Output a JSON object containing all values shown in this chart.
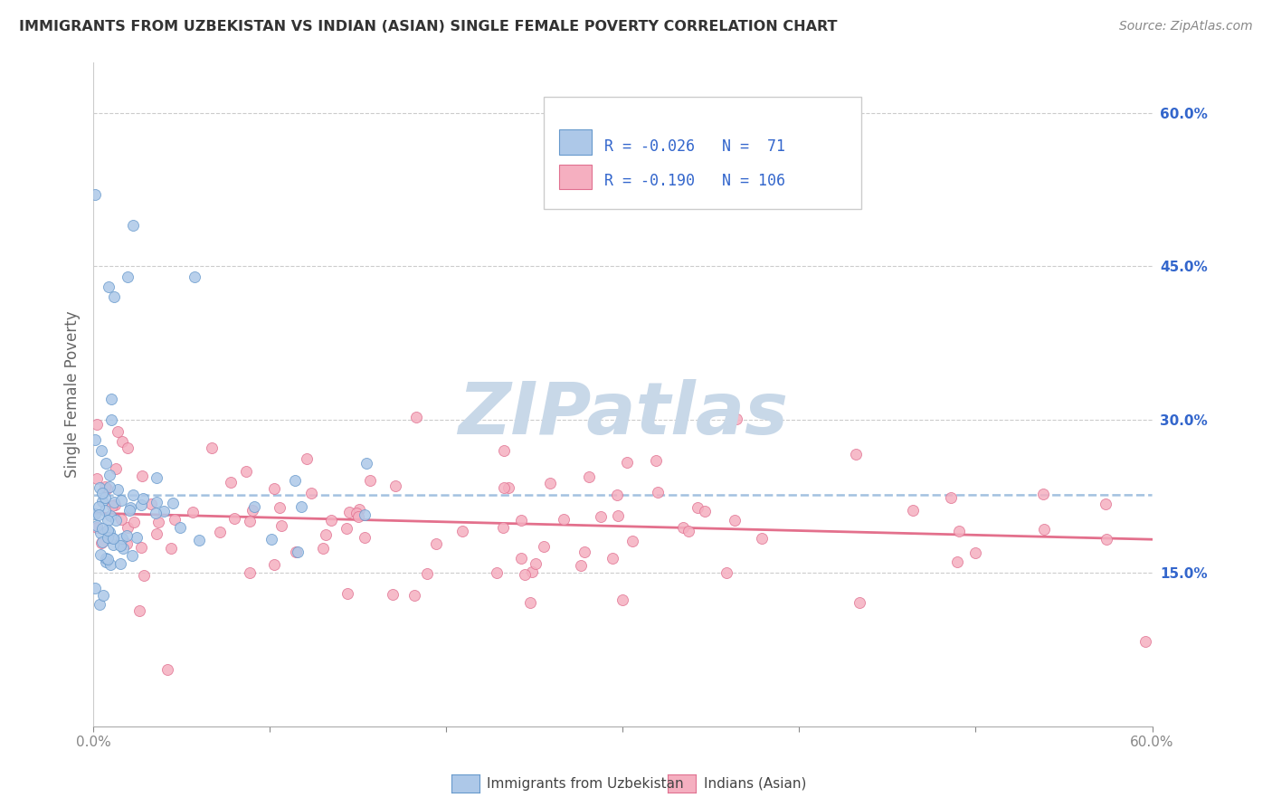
{
  "title": "IMMIGRANTS FROM UZBEKISTAN VS INDIAN (ASIAN) SINGLE FEMALE POVERTY CORRELATION CHART",
  "source": "Source: ZipAtlas.com",
  "ylabel": "Single Female Poverty",
  "xlim": [
    0.0,
    0.6
  ],
  "ylim": [
    0.0,
    0.65
  ],
  "right_yticks": [
    0.15,
    0.3,
    0.45,
    0.6
  ],
  "uzbekistan_color": "#adc8e8",
  "uzbekistan_edge": "#6699cc",
  "indian_color": "#f5afc0",
  "indian_edge": "#e07090",
  "uzbekistan_R": "-0.026",
  "uzbekistan_N": "71",
  "indian_R": "-0.190",
  "indian_N": "106",
  "legend_label_uzbekistan": "Immigrants from Uzbekistan",
  "legend_label_indian": "Indians (Asian)",
  "watermark": "ZIPatlas",
  "watermark_color": "#c8d8e8",
  "uzbekistan_trend_color": "#99bbdd",
  "indian_trend_color": "#e06080",
  "legend_text_color": "#3366cc",
  "grid_color": "#cccccc",
  "right_tick_color": "#3366cc"
}
